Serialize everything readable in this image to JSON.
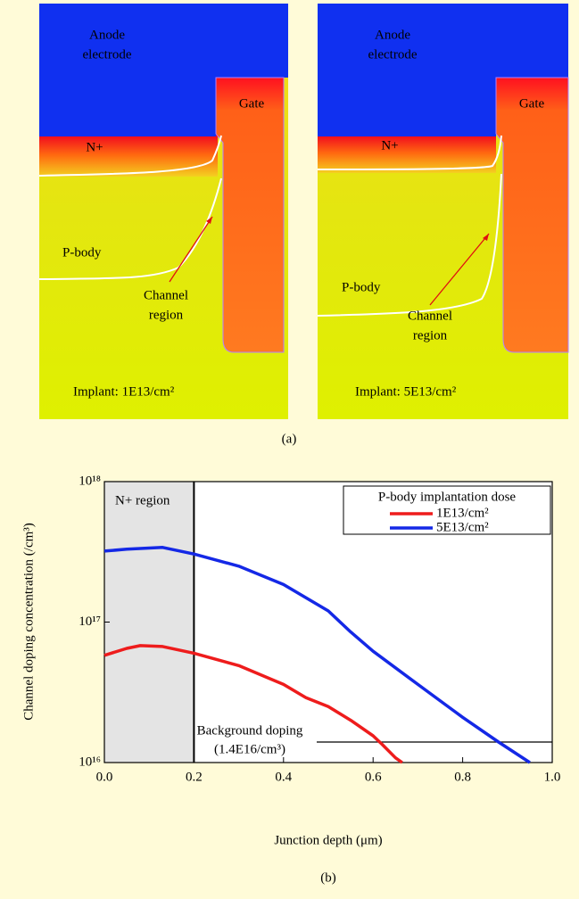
{
  "panel_a": {
    "images": [
      {
        "anode": [
          "Anode",
          "electrode"
        ],
        "gate": "Gate",
        "n_plus": "N+",
        "p_body": "P-body",
        "channel": [
          "Channel",
          "region"
        ],
        "implant": "Implant: 1E13/cm²"
      },
      {
        "anode": [
          "Anode",
          "electrode"
        ],
        "gate": "Gate",
        "n_plus": "N+",
        "p_body": "P-body",
        "channel": [
          "Channel",
          "region"
        ],
        "implant": "Implant: 5E13/cm²"
      }
    ],
    "caption": "(a)"
  },
  "chart_data": {
    "type": "line",
    "caption": "(b)",
    "x_label": "Junction depth (μm)",
    "y_label": "Channel doping concentration (/cm³)",
    "xlim": [
      0,
      1
    ],
    "xticks": [
      {
        "value": 0,
        "label": "0.0"
      },
      0.2,
      0.4,
      0.6,
      0.8,
      {
        "value": 1,
        "label": "1.0"
      }
    ],
    "ylim": [
      1e+16,
      1e+18
    ],
    "y_scale": "log",
    "yticks": [
      {
        "value": 1e+16,
        "label": "10¹⁶"
      },
      {
        "value": 1e+17,
        "label": "10¹⁷"
      },
      {
        "value": 1e+18,
        "label": "10¹⁸"
      }
    ],
    "legend_title": "P-body implantation dose",
    "legend_position": "upper right",
    "series": [
      {
        "name": "1E13/cm²",
        "color": "#ee1c1c",
        "x": [
          0,
          0.05,
          0.08,
          0.13,
          0.2,
          0.3,
          0.4,
          0.45,
          0.5,
          0.55,
          0.6,
          0.62,
          0.65,
          0.665
        ],
        "values": [
          5.8e+16,
          6.5e+16,
          6.8e+16,
          6.7e+16,
          6e+16,
          4.9e+16,
          3.6e+16,
          2.9e+16,
          2.5e+16,
          2e+16,
          1.55e+16,
          1.35e+16,
          1.08e+16,
          1e+16
        ]
      },
      {
        "name": "5E13/cm²",
        "color": "#1428e6",
        "x": [
          0,
          0.05,
          0.13,
          0.2,
          0.3,
          0.4,
          0.5,
          0.55,
          0.6,
          0.7,
          0.8,
          0.88,
          0.95
        ],
        "values": [
          3.2e+17,
          3.3e+17,
          3.4e+17,
          3.05e+17,
          2.5e+17,
          1.85e+17,
          1.2e+17,
          8.5e+16,
          6.2e+16,
          3.6e+16,
          2.1e+16,
          1.4e+16,
          1e+16
        ]
      }
    ],
    "shaded_region": {
      "label": "N+ region",
      "x": [
        0,
        0.2
      ]
    },
    "reference_line": {
      "value": 1.4e+16,
      "label": [
        "Background doping",
        "(1.4E16/cm³)"
      ]
    }
  }
}
